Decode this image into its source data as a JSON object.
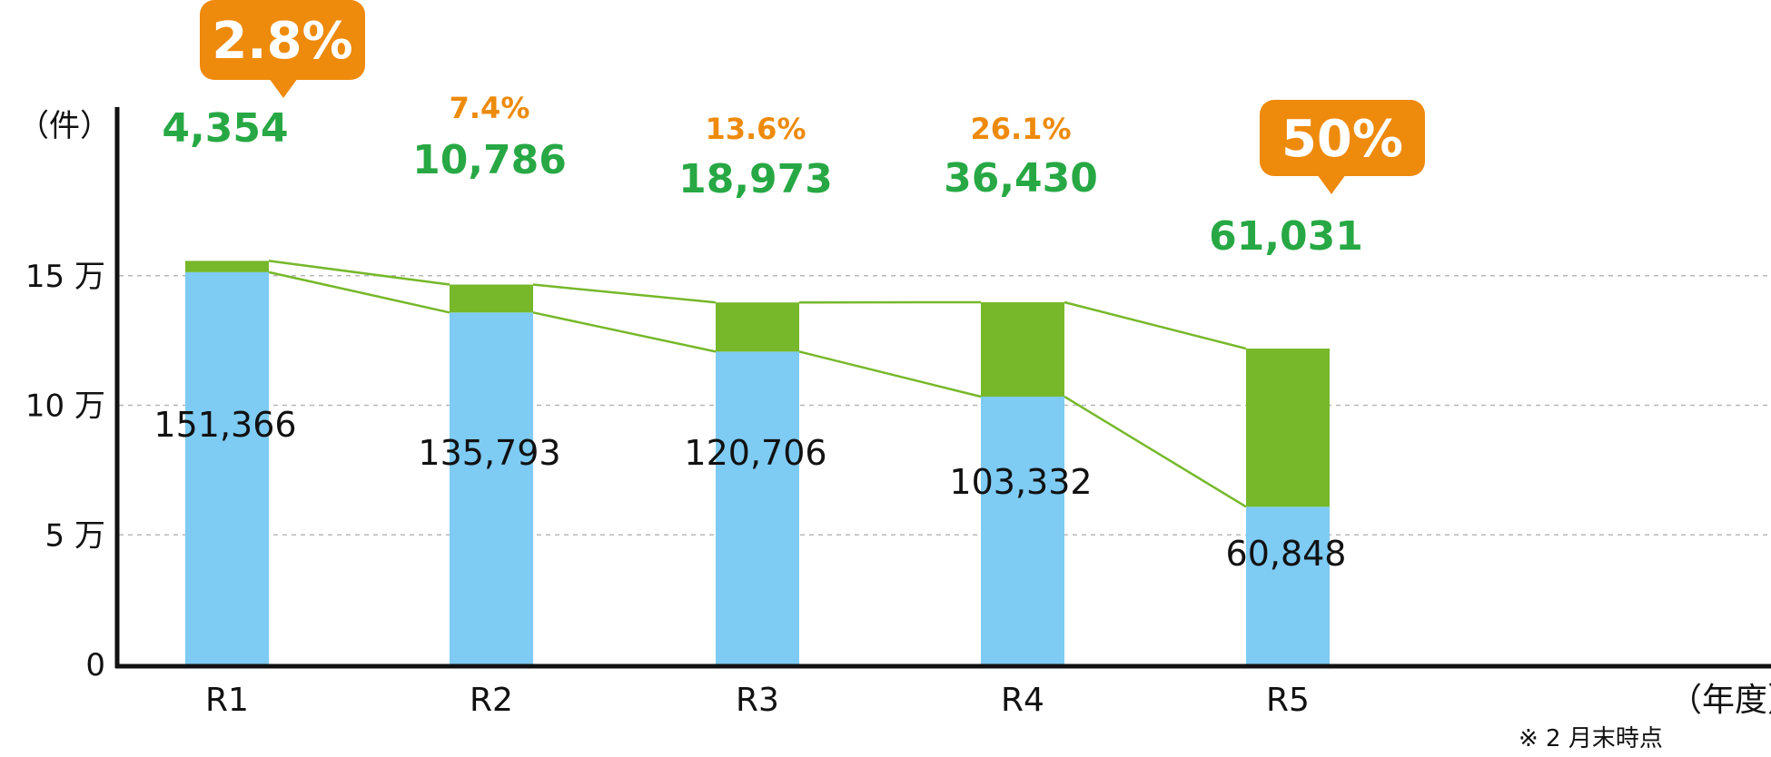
{
  "chart_data": {
    "type": "bar",
    "stacked": true,
    "categories": [
      "R1",
      "R2",
      "R3",
      "R4",
      "R5"
    ],
    "series": [
      {
        "values": [
          151366,
          135793,
          120706,
          103332,
          60848
        ],
        "color": "#7ecbf3"
      },
      {
        "values": [
          4354,
          10786,
          18973,
          36430,
          61031
        ],
        "color": "#76b82a"
      }
    ],
    "value_labels_bottom": [
      "151,366",
      "135,793",
      "120,706",
      "103,332",
      "60,848"
    ],
    "value_labels_top": [
      "4,354",
      "10,786",
      "18,973",
      "36,430",
      "61,031"
    ],
    "percent_labels": [
      "2.8%",
      "7.4%",
      "13.6%",
      "26.1%",
      "50%"
    ],
    "callout_indices": [
      0,
      4
    ],
    "y_unit_label": "（件）",
    "x_unit_label": "（年度）",
    "y_ticks": [
      {
        "value": 0,
        "label": "0"
      },
      {
        "value": 50000,
        "label": "5 万"
      },
      {
        "value": 100000,
        "label": "10 万"
      },
      {
        "value": 150000,
        "label": "15 万"
      }
    ],
    "ylim": [
      0,
      150000
    ],
    "grid": true,
    "note": "※ 2 月末時点",
    "colors": {
      "callout": "#ee8a0c",
      "top_label": "#27a844",
      "percent": "#ee8a0c",
      "connector": "#76b82a"
    }
  }
}
